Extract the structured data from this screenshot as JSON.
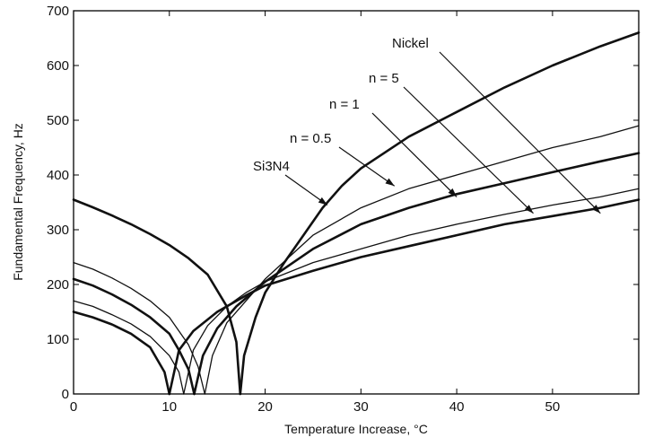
{
  "chart_data": {
    "type": "line",
    "title": "",
    "xlabel": "Temperature Increase, °C",
    "ylabel": "Fundamental Frequency, Hz",
    "xlim": [
      0,
      59
    ],
    "ylim": [
      0,
      700
    ],
    "xticks": [
      0,
      10,
      20,
      30,
      40,
      50
    ],
    "yticks": [
      0,
      100,
      200,
      300,
      400,
      500,
      600,
      700
    ],
    "grid": false,
    "legend": "none",
    "series": [
      {
        "name": "Si3N4",
        "weight": "heavy",
        "branches": [
          [
            [
              0,
              355
            ],
            [
              2,
              341
            ],
            [
              4,
              326
            ],
            [
              6,
              310
            ],
            [
              8,
              292
            ],
            [
              10,
              272
            ],
            [
              12,
              248
            ],
            [
              14,
              218
            ],
            [
              16,
              160
            ],
            [
              17,
              95
            ],
            [
              17.4,
              0
            ]
          ],
          [
            [
              17.4,
              0
            ],
            [
              17.8,
              70
            ],
            [
              19,
              140
            ],
            [
              20,
              185
            ],
            [
              22,
              240
            ],
            [
              24,
              290
            ],
            [
              26,
              340
            ],
            [
              28,
              380
            ],
            [
              30,
              412
            ],
            [
              35,
              470
            ],
            [
              40,
              515
            ],
            [
              45,
              560
            ],
            [
              50,
              600
            ],
            [
              55,
              635
            ],
            [
              59,
              660
            ]
          ]
        ]
      },
      {
        "name": "n = 0.5",
        "weight": "light",
        "branches": [
          [
            [
              0,
              240
            ],
            [
              2,
              228
            ],
            [
              4,
              212
            ],
            [
              6,
              193
            ],
            [
              8,
              170
            ],
            [
              10,
              140
            ],
            [
              12,
              90
            ],
            [
              13,
              50
            ],
            [
              13.7,
              0
            ]
          ],
          [
            [
              13.7,
              0
            ],
            [
              14.5,
              70
            ],
            [
              16,
              130
            ],
            [
              18,
              170
            ],
            [
              20,
              210
            ],
            [
              25,
              290
            ],
            [
              30,
              340
            ],
            [
              35,
              375
            ],
            [
              40,
              400
            ],
            [
              45,
              425
            ],
            [
              50,
              450
            ],
            [
              55,
              470
            ],
            [
              59,
              490
            ]
          ]
        ]
      },
      {
        "name": "n = 1",
        "weight": "heavy",
        "branches": [
          [
            [
              0,
              210
            ],
            [
              2,
              198
            ],
            [
              4,
              182
            ],
            [
              6,
              163
            ],
            [
              8,
              140
            ],
            [
              10,
              110
            ],
            [
              11,
              80
            ],
            [
              12,
              45
            ],
            [
              12.6,
              0
            ]
          ],
          [
            [
              12.6,
              0
            ],
            [
              13.5,
              70
            ],
            [
              15,
              120
            ],
            [
              17,
              160
            ],
            [
              20,
              205
            ],
            [
              25,
              265
            ],
            [
              30,
              310
            ],
            [
              35,
              340
            ],
            [
              40,
              365
            ],
            [
              45,
              385
            ],
            [
              50,
              405
            ],
            [
              55,
              425
            ],
            [
              59,
              440
            ]
          ]
        ]
      },
      {
        "name": "n = 5",
        "weight": "light",
        "branches": [
          [
            [
              0,
              170
            ],
            [
              2,
              160
            ],
            [
              4,
              145
            ],
            [
              6,
              128
            ],
            [
              8,
              105
            ],
            [
              10,
              70
            ],
            [
              11,
              40
            ],
            [
              11.5,
              0
            ]
          ],
          [
            [
              11.5,
              0
            ],
            [
              12.5,
              80
            ],
            [
              14,
              125
            ],
            [
              16,
              160
            ],
            [
              18,
              185
            ],
            [
              20,
              205
            ],
            [
              25,
              240
            ],
            [
              30,
              265
            ],
            [
              35,
              290
            ],
            [
              40,
              310
            ],
            [
              45,
              328
            ],
            [
              50,
              345
            ],
            [
              55,
              360
            ],
            [
              59,
              375
            ]
          ]
        ]
      },
      {
        "name": "Nickel",
        "weight": "heavy",
        "branches": [
          [
            [
              0,
              150
            ],
            [
              2,
              140
            ],
            [
              4,
              127
            ],
            [
              6,
              110
            ],
            [
              8,
              85
            ],
            [
              9.5,
              40
            ],
            [
              10,
              0
            ]
          ],
          [
            [
              10,
              0
            ],
            [
              11,
              80
            ],
            [
              12.5,
              115
            ],
            [
              15,
              150
            ],
            [
              18,
              180
            ],
            [
              20,
              198
            ],
            [
              25,
              225
            ],
            [
              30,
              250
            ],
            [
              35,
              270
            ],
            [
              40,
              290
            ],
            [
              45,
              310
            ],
            [
              50,
              325
            ],
            [
              55,
              340
            ],
            [
              59,
              355
            ]
          ]
        ]
      }
    ],
    "annotations": [
      {
        "text": "Si3N4",
        "points_to": [
          26.5,
          345
        ]
      },
      {
        "text": "n = 0.5",
        "points_to": [
          33.5,
          380
        ]
      },
      {
        "text": "n = 1",
        "points_to": [
          40,
          360
        ]
      },
      {
        "text": "n = 5",
        "points_to": [
          48,
          330
        ]
      },
      {
        "text": "Nickel",
        "points_to": [
          55,
          330
        ]
      }
    ]
  }
}
